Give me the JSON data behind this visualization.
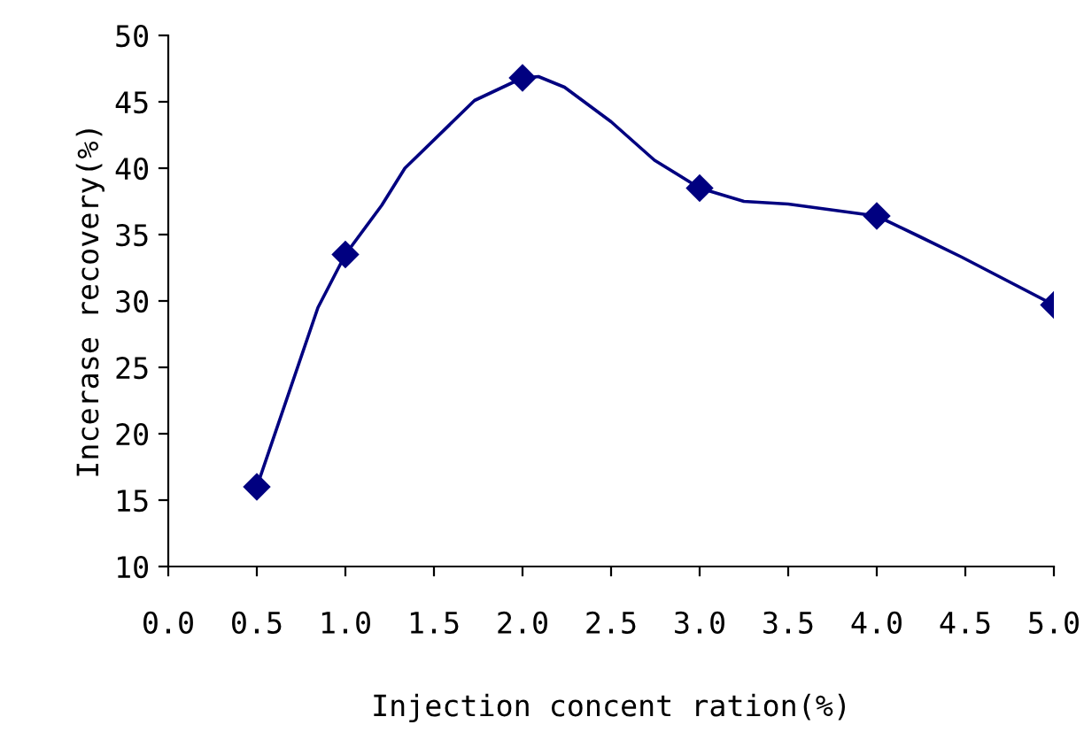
{
  "chart_data": {
    "type": "line",
    "xlabel": "Injection concent ration(%)",
    "ylabel": "Incerase recovery(%)",
    "series": [
      {
        "color": "#000080",
        "marker": "none",
        "x": [
          0.5,
          0.845,
          1.0,
          1.205,
          1.336,
          1.729,
          2.0,
          2.09,
          2.237,
          2.5,
          2.745,
          3.0,
          3.25,
          3.5,
          4.0,
          4.234,
          4.48,
          5.0
        ],
        "values": [
          16.0,
          29.5,
          33.5,
          37.2,
          40.0,
          45.1,
          46.8,
          46.9,
          46.1,
          43.5,
          40.6,
          38.5,
          37.5,
          37.3,
          36.4,
          34.9,
          33.3,
          29.7
        ]
      },
      {
        "type": "scatter",
        "color": "#000080",
        "marker": "diamond",
        "x": [
          0.5,
          1.0,
          2.0,
          3.0,
          4.0,
          5.0
        ],
        "values": [
          16.0,
          33.5,
          46.8,
          38.5,
          36.4,
          29.7
        ]
      }
    ],
    "xlim": [
      0.0,
      5.0
    ],
    "xticks": [
      {
        "value": 0.0,
        "label": "0.0"
      },
      0.5,
      {
        "value": 1.0,
        "label": "1.0"
      },
      1.5,
      {
        "value": 2.0,
        "label": "2.0"
      },
      2.5,
      {
        "value": 3.0,
        "label": "3.0"
      },
      3.5,
      {
        "value": 4.0,
        "label": "4.0"
      },
      4.5,
      {
        "value": 5.0,
        "label": "5.0"
      }
    ],
    "ylim": [
      10,
      50
    ],
    "yticks": [
      10,
      15,
      20,
      25,
      30,
      35,
      40,
      45,
      50
    ],
    "grid": false,
    "legend": false,
    "line_style": "solid"
  }
}
